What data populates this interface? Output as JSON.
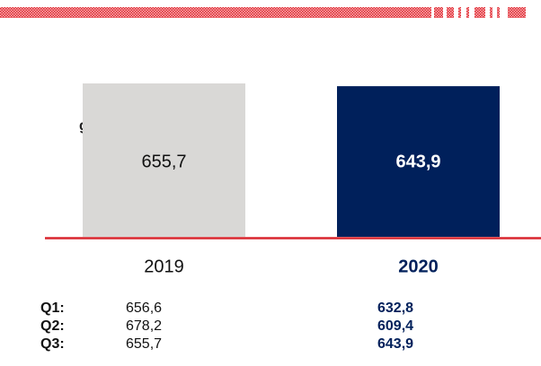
{
  "side_label": "g",
  "chart_data": {
    "type": "bar",
    "categories": [
      "2019",
      "2020"
    ],
    "values": [
      655.7,
      643.9
    ],
    "value_labels": [
      "655,7",
      "643,9"
    ],
    "colors": [
      "#d9d8d6",
      "#00205b"
    ]
  },
  "table": {
    "rows": [
      [
        "Q1:",
        "656,6",
        "632,8"
      ],
      [
        "Q2:",
        "678,2",
        "609,4"
      ],
      [
        "Q3:",
        "655,7",
        "643,9"
      ]
    ]
  }
}
